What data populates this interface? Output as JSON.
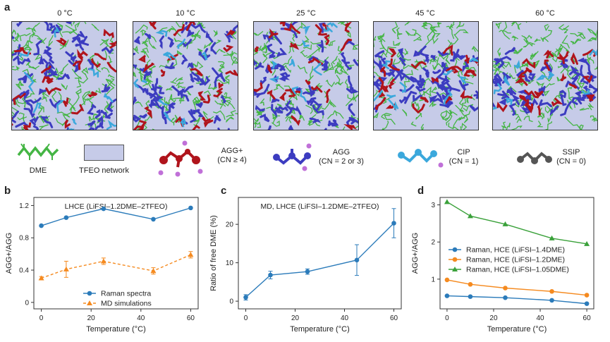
{
  "panel_labels": {
    "a": "a",
    "b": "b",
    "c": "c",
    "d": "d"
  },
  "simulations": [
    {
      "title": "0 °C"
    },
    {
      "title": "10 °C"
    },
    {
      "title": "25 °C"
    },
    {
      "title": "45 °C"
    },
    {
      "title": "60 °C"
    }
  ],
  "legend": {
    "dme": "DME",
    "tfeo": "TFEO network",
    "aggplus_name": "AGG+",
    "aggplus_cn": "(CN ≥ 4)",
    "agg_name": "AGG",
    "agg_cn": "(CN = 2 or 3)",
    "cip_name": "CIP",
    "cip_cn": "(CN = 1)",
    "ssip_name": "SSIP",
    "ssip_cn": "(CN = 0)"
  },
  "colors": {
    "dme": "#44b544",
    "tfeo": "#c6cbe8",
    "aggplus": "#b0141c",
    "agg": "#3c3cc0",
    "cip": "#3ba8dc",
    "ssip": "#555555",
    "li": "#c070d8",
    "blue": "#2b7bba",
    "orange": "#f58a1f",
    "green": "#3aa13a"
  },
  "chart_data": [
    {
      "type": "line",
      "panel": "b",
      "title": "LHCE (LiFSI–1.2DME–2TFEO)",
      "xlabel": "Temperature (°C)",
      "ylabel": "AGG+/AGG",
      "xlim": [
        -3,
        63
      ],
      "ylim": [
        -0.08,
        1.3
      ],
      "xticks": [
        0,
        20,
        40,
        60
      ],
      "yticks": [
        0,
        0.4,
        0.8,
        1.2
      ],
      "series": [
        {
          "name": "Raman spectra",
          "x": [
            0,
            10,
            25,
            45,
            60
          ],
          "y": [
            0.95,
            1.05,
            1.16,
            1.03,
            1.17
          ],
          "err": null,
          "style": "solid-circle"
        },
        {
          "name": "MD simulations",
          "x": [
            0,
            10,
            25,
            45,
            60
          ],
          "y": [
            0.3,
            0.41,
            0.51,
            0.39,
            0.59
          ],
          "err": [
            0.02,
            0.1,
            0.04,
            0.04,
            0.04
          ],
          "style": "dashed-triangle"
        }
      ]
    },
    {
      "type": "line",
      "panel": "c",
      "title": "MD, LHCE (LiFSI–1.2DME–2TFEO)",
      "xlabel": "Temperature (°C)",
      "ylabel": "Ratio of free DME (%)",
      "xlim": [
        -3,
        63
      ],
      "ylim": [
        -2,
        27
      ],
      "xticks": [
        0,
        20,
        40,
        60
      ],
      "yticks": [
        0,
        10,
        20
      ],
      "series": [
        {
          "name": "Free DME ratio",
          "x": [
            0,
            10,
            25,
            45,
            60
          ],
          "y": [
            1.0,
            6.8,
            7.7,
            10.7,
            20.3
          ],
          "err": [
            0.7,
            1.0,
            0.7,
            4.0,
            3.8
          ],
          "style": "solid-circle"
        }
      ]
    },
    {
      "type": "line",
      "panel": "d",
      "title": "",
      "xlabel": "Temperature (°C)",
      "ylabel": "AGG+/AGG",
      "xlim": [
        -3,
        63
      ],
      "ylim": [
        0.2,
        3.2
      ],
      "xticks": [
        0,
        20,
        40,
        60
      ],
      "yticks": [
        1,
        2,
        3
      ],
      "series": [
        {
          "name": "Raman, HCE (LiFSI–1.4DME)",
          "x": [
            0,
            10,
            25,
            45,
            60
          ],
          "y": [
            0.55,
            0.53,
            0.5,
            0.43,
            0.34
          ],
          "err": null,
          "style": "solid-circle"
        },
        {
          "name": "Raman, HCE (LiFSI–1.2DME)",
          "x": [
            0,
            10,
            25,
            45,
            60
          ],
          "y": [
            0.98,
            0.86,
            0.76,
            0.67,
            0.57
          ],
          "err": null,
          "style": "solid-circle"
        },
        {
          "name": "Raman, HCE (LiFSI–1.05DME)",
          "x": [
            0,
            10,
            25,
            45,
            60
          ],
          "y": [
            3.08,
            2.7,
            2.48,
            2.1,
            1.95
          ],
          "err": null,
          "style": "solid-triangle"
        }
      ]
    }
  ]
}
